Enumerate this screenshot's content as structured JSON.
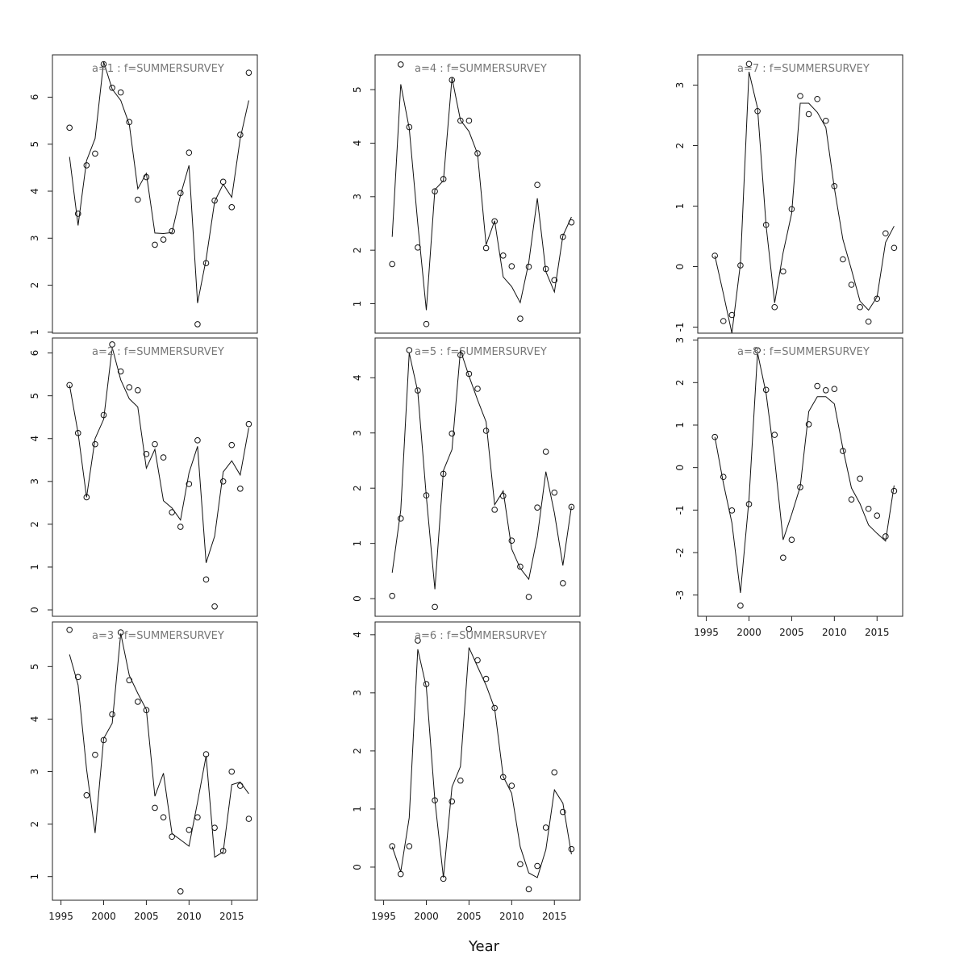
{
  "xlabel": "Year",
  "chart_data": {
    "type": "scatter",
    "xlabel": "Year",
    "xlim": [
      1994,
      2018
    ],
    "xticks": [
      1995,
      2000,
      2005,
      2010,
      2015
    ],
    "x": [
      1996,
      1997,
      1998,
      1999,
      2000,
      2001,
      2002,
      2003,
      2004,
      2005,
      2006,
      2007,
      2008,
      2009,
      2010,
      2011,
      2012,
      2013,
      2014,
      2015,
      2016,
      2017
    ],
    "panels": [
      {
        "title": "a=1  :  f=SUMMERSURVEY",
        "ylim": [
          0.98,
          6.9
        ],
        "yticks": [
          1,
          2,
          3,
          4,
          5,
          6
        ],
        "observed": [
          5.35,
          3.52,
          4.55,
          4.8,
          6.7,
          6.2,
          6.1,
          5.47,
          3.82,
          4.3,
          2.86,
          2.97,
          3.15,
          3.96,
          4.82,
          1.17,
          2.47,
          3.8,
          4.2,
          3.66,
          5.2,
          6.52
        ],
        "fitted": [
          4.73,
          3.27,
          4.65,
          5.12,
          6.75,
          6.17,
          5.93,
          5.42,
          4.05,
          4.38,
          3.11,
          3.1,
          3.12,
          3.92,
          4.55,
          1.62,
          2.55,
          3.78,
          4.15,
          3.87,
          5.12,
          5.93
        ]
      },
      {
        "title": "a=2  :  f=SUMMERSURVEY",
        "ylim": [
          -0.15,
          6.35
        ],
        "yticks": [
          0,
          1,
          2,
          3,
          4,
          5,
          6
        ],
        "observed": [
          5.25,
          4.13,
          2.63,
          3.87,
          4.55,
          6.2,
          5.57,
          5.2,
          5.13,
          3.64,
          3.87,
          3.56,
          2.28,
          1.94,
          2.94,
          3.96,
          0.71,
          0.08,
          3.0,
          3.85,
          2.83,
          4.34
        ],
        "fitted": [
          5.25,
          4.13,
          2.63,
          4.0,
          4.45,
          6.13,
          5.37,
          4.93,
          4.74,
          3.31,
          3.75,
          2.55,
          2.38,
          2.1,
          3.2,
          3.82,
          1.1,
          1.72,
          3.22,
          3.48,
          3.15,
          4.25
        ]
      },
      {
        "title": "a=3  :  f=SUMMERSURVEY",
        "ylim": [
          0.55,
          5.85
        ],
        "yticks": [
          1,
          2,
          3,
          4,
          5
        ],
        "observed": [
          5.7,
          4.8,
          2.55,
          3.32,
          3.6,
          4.09,
          5.65,
          4.74,
          4.33,
          4.17,
          2.31,
          2.13,
          1.76,
          0.72,
          1.89,
          2.13,
          3.33,
          1.93,
          1.49,
          3.0,
          2.73,
          2.1
        ],
        "fitted": [
          5.23,
          4.65,
          3.05,
          1.83,
          3.63,
          3.92,
          5.63,
          4.83,
          4.49,
          4.18,
          2.53,
          2.97,
          1.82,
          1.7,
          1.58,
          2.42,
          3.3,
          1.37,
          1.47,
          2.75,
          2.8,
          2.58
        ]
      },
      {
        "title": "a=4  :  f=SUMMERSURVEY",
        "ylim": [
          0.45,
          5.65
        ],
        "yticks": [
          1,
          2,
          3,
          4,
          5
        ],
        "observed": [
          1.74,
          5.47,
          4.3,
          2.05,
          0.62,
          3.1,
          3.33,
          5.18,
          4.42,
          4.42,
          3.81,
          2.04,
          2.54,
          1.9,
          1.7,
          0.72,
          1.69,
          3.22,
          1.65,
          1.44,
          2.25,
          2.52
        ],
        "fitted": [
          2.25,
          5.1,
          4.28,
          2.5,
          0.88,
          3.13,
          3.3,
          5.22,
          4.43,
          4.22,
          3.8,
          2.1,
          2.55,
          1.5,
          1.32,
          1.02,
          1.77,
          2.97,
          1.6,
          1.22,
          2.27,
          2.62
        ]
      },
      {
        "title": "a=5  :  f=SUMMERSURVEY",
        "ylim": [
          -0.32,
          4.72
        ],
        "yticks": [
          0,
          1,
          2,
          3,
          4
        ],
        "observed": [
          0.05,
          1.45,
          4.5,
          3.77,
          1.87,
          -0.15,
          2.26,
          2.99,
          4.41,
          4.07,
          3.8,
          3.04,
          1.61,
          1.86,
          1.05,
          0.58,
          0.03,
          1.65,
          2.66,
          1.92,
          0.28,
          1.66
        ],
        "fitted": [
          0.47,
          1.6,
          4.45,
          3.75,
          1.85,
          0.17,
          2.32,
          2.7,
          4.5,
          4.03,
          3.6,
          3.2,
          1.7,
          1.95,
          0.9,
          0.55,
          0.35,
          1.12,
          2.3,
          1.55,
          0.6,
          1.67
        ]
      },
      {
        "title": "a=6  :  f=SUMMERSURVEY",
        "ylim": [
          -0.57,
          4.22
        ],
        "yticks": [
          0,
          1,
          2,
          3,
          4
        ],
        "observed": [
          0.36,
          -0.12,
          0.36,
          3.9,
          3.15,
          1.15,
          -0.2,
          1.13,
          1.49,
          4.1,
          3.56,
          3.24,
          2.74,
          1.55,
          1.4,
          0.05,
          -0.38,
          0.02,
          0.68,
          1.63,
          0.95,
          0.31
        ],
        "fitted": [
          0.35,
          -0.08,
          0.85,
          3.75,
          3.1,
          1.15,
          -0.18,
          1.38,
          1.73,
          3.78,
          3.45,
          3.13,
          2.73,
          1.56,
          1.27,
          0.35,
          -0.1,
          -0.18,
          0.3,
          1.33,
          1.1,
          0.22
        ]
      },
      {
        "title": "a=7  :  f=SUMMERSURVEY",
        "ylim": [
          -1.1,
          3.5
        ],
        "yticks": [
          -1,
          0,
          1,
          2,
          3
        ],
        "observed": [
          0.18,
          -0.9,
          -0.8,
          0.02,
          3.35,
          2.57,
          0.69,
          -0.67,
          -0.08,
          0.95,
          2.82,
          2.52,
          2.77,
          2.41,
          1.33,
          0.12,
          -0.3,
          -0.67,
          -0.91,
          -0.53,
          0.55,
          0.31
        ],
        "fitted": [
          0.18,
          -0.45,
          -1.1,
          0.05,
          3.22,
          2.62,
          0.68,
          -0.6,
          0.23,
          0.88,
          2.7,
          2.7,
          2.55,
          2.3,
          1.3,
          0.45,
          -0.05,
          -0.57,
          -0.72,
          -0.5,
          0.4,
          0.67
        ]
      },
      {
        "title": "a=8  :  f=SUMMERSURVEY",
        "ylim": [
          -3.5,
          3.05
        ],
        "yticks": [
          -3,
          -2,
          -1,
          0,
          1,
          2,
          3
        ],
        "observed": [
          0.72,
          -0.22,
          -1.01,
          -3.25,
          -0.86,
          2.76,
          1.83,
          0.77,
          -2.12,
          -1.7,
          -0.46,
          1.02,
          1.92,
          1.82,
          1.85,
          0.39,
          -0.75,
          -0.26,
          -0.97,
          -1.13,
          -1.62,
          -0.55
        ],
        "fitted": [
          0.72,
          -0.37,
          -1.3,
          -2.95,
          -0.75,
          2.7,
          1.75,
          0.2,
          -1.7,
          -1.1,
          -0.45,
          1.32,
          1.67,
          1.67,
          1.5,
          0.45,
          -0.48,
          -0.85,
          -1.35,
          -1.55,
          -1.73,
          -0.42
        ]
      }
    ]
  }
}
